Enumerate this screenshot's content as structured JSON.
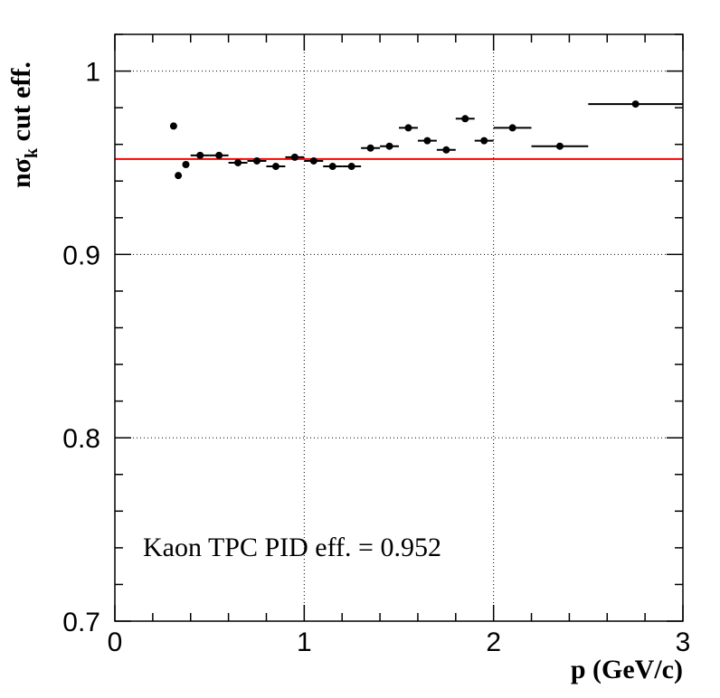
{
  "chart_data": {
    "type": "scatter",
    "xlabel": "p (GeV/c)",
    "ylabel": {
      "prefix": "nσ",
      "subscript": "k",
      "suffix": " cut eff."
    },
    "xlim": [
      0,
      3
    ],
    "ylim": [
      0.7,
      1.02
    ],
    "x_ticks": [
      0,
      1,
      2,
      3
    ],
    "x_tick_labels": [
      "0",
      "1",
      "2",
      "3"
    ],
    "y_ticks": [
      0.7,
      0.8,
      0.9,
      1.0
    ],
    "y_tick_labels": [
      "0.7",
      "0.8",
      "0.9",
      "1"
    ],
    "grid": true,
    "fit_line": {
      "y": 0.952,
      "color": "#ff0000"
    },
    "annotation": "Kaon TPC PID eff. = 0.952",
    "marker_color": "#000000",
    "series": [
      {
        "points": [
          {
            "x": 0.31,
            "y": 0.97,
            "xerr": 0
          },
          {
            "x": 0.335,
            "y": 0.943,
            "xerr": 0
          },
          {
            "x": 0.375,
            "y": 0.949,
            "xerr": 0.01
          },
          {
            "x": 0.45,
            "y": 0.954,
            "xerr": 0.05
          },
          {
            "x": 0.55,
            "y": 0.954,
            "xerr": 0.05
          },
          {
            "x": 0.65,
            "y": 0.95,
            "xerr": 0.05
          },
          {
            "x": 0.75,
            "y": 0.951,
            "xerr": 0.05
          },
          {
            "x": 0.85,
            "y": 0.948,
            "xerr": 0.05
          },
          {
            "x": 0.95,
            "y": 0.953,
            "xerr": 0.05
          },
          {
            "x": 1.05,
            "y": 0.951,
            "xerr": 0.05
          },
          {
            "x": 1.15,
            "y": 0.948,
            "xerr": 0.05
          },
          {
            "x": 1.25,
            "y": 0.948,
            "xerr": 0.05
          },
          {
            "x": 1.35,
            "y": 0.958,
            "xerr": 0.05
          },
          {
            "x": 1.45,
            "y": 0.959,
            "xerr": 0.05
          },
          {
            "x": 1.55,
            "y": 0.969,
            "xerr": 0.05
          },
          {
            "x": 1.65,
            "y": 0.962,
            "xerr": 0.05
          },
          {
            "x": 1.75,
            "y": 0.957,
            "xerr": 0.05
          },
          {
            "x": 1.85,
            "y": 0.974,
            "xerr": 0.05
          },
          {
            "x": 1.95,
            "y": 0.962,
            "xerr": 0.05
          },
          {
            "x": 2.1,
            "y": 0.969,
            "xerr": 0.1
          },
          {
            "x": 2.35,
            "y": 0.959,
            "xerr": 0.15
          },
          {
            "x": 2.75,
            "y": 0.982,
            "xerr": 0.25
          }
        ]
      }
    ]
  }
}
